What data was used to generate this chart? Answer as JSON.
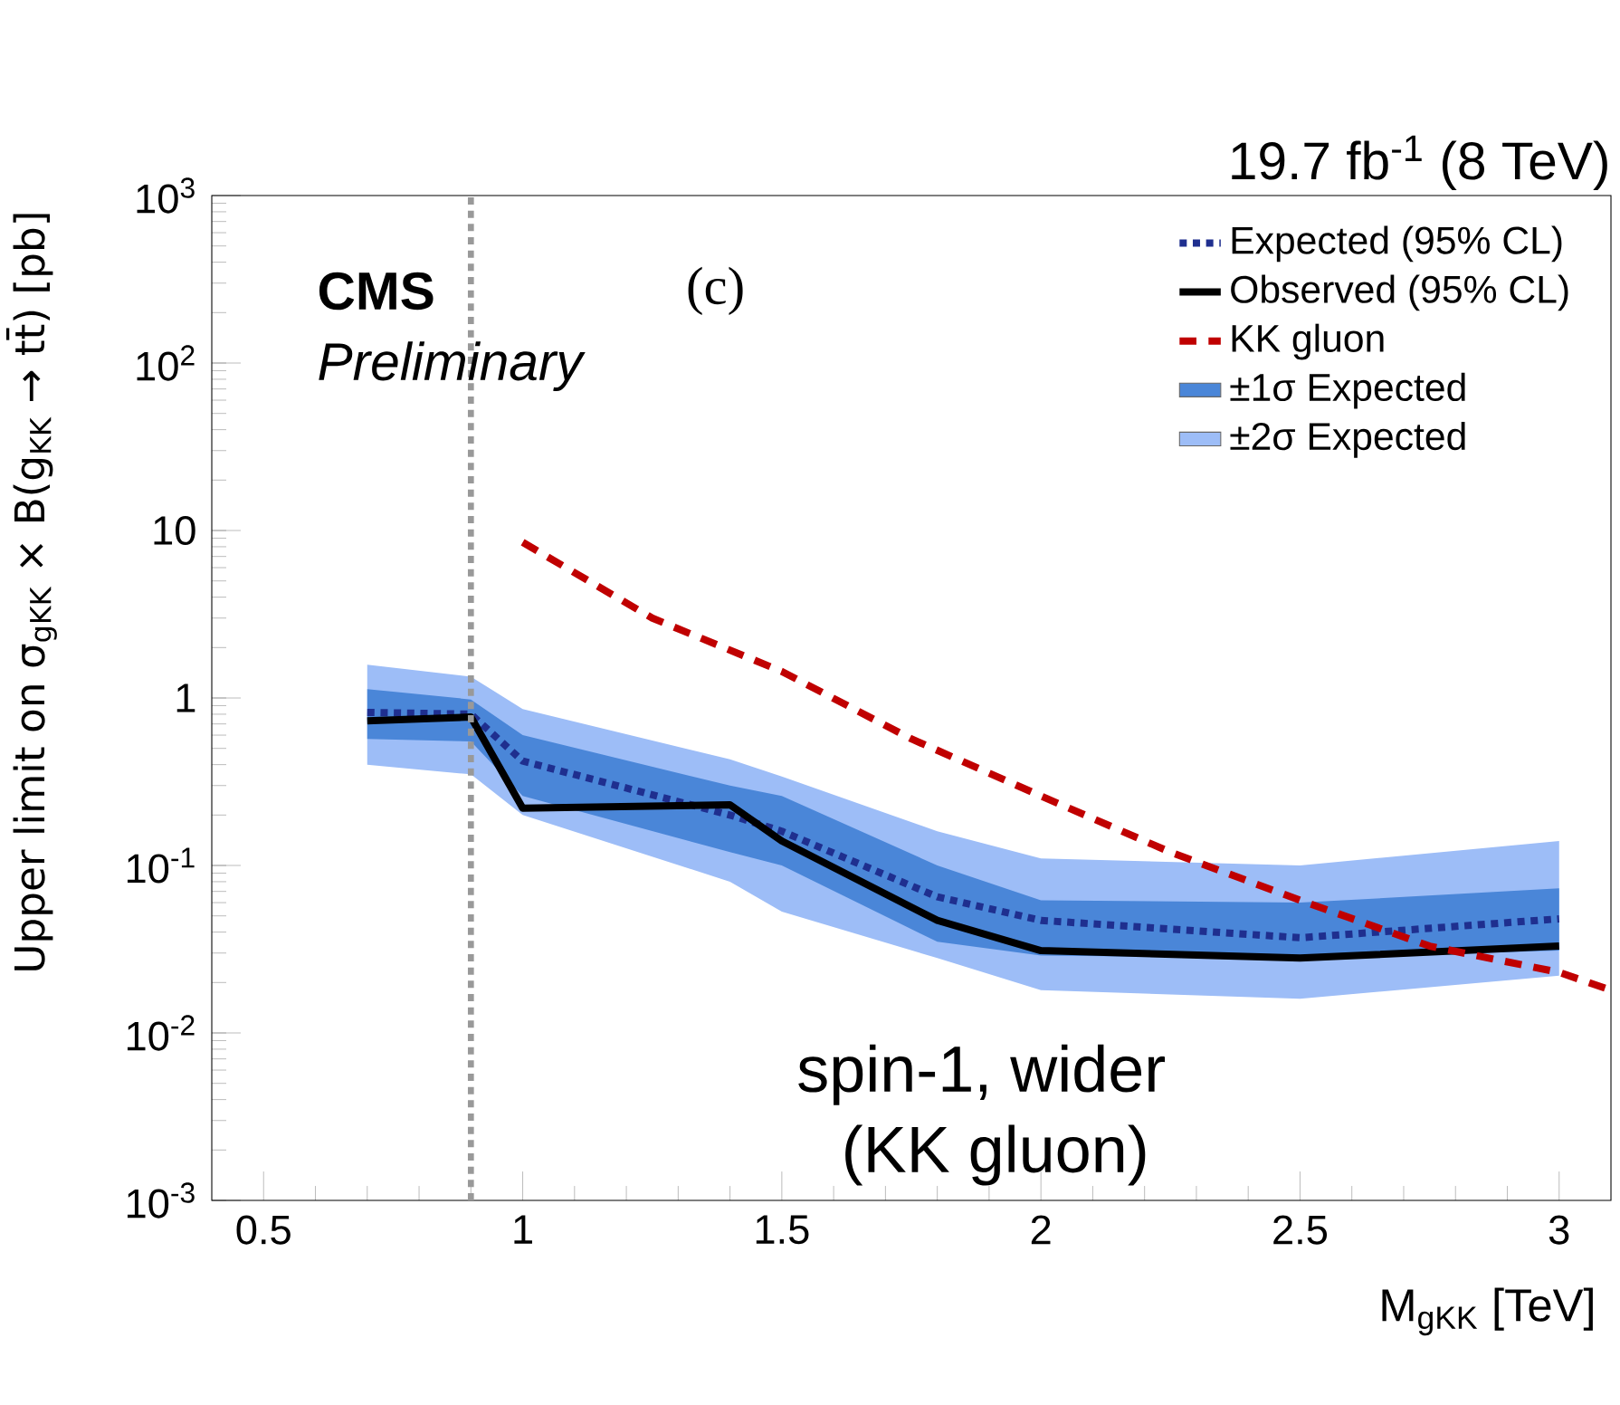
{
  "chart_data": {
    "type": "line",
    "xlabel": "M$_{gKK}$ [TeV]",
    "ylabel": "Upper limit on σ$_{gKK}$ × B(g$_{KK}$ → tt̄) [pb]",
    "x": [
      0.7,
      0.9,
      1.0,
      1.4,
      1.5,
      1.8,
      2.0,
      2.5,
      3.0
    ],
    "series": [
      {
        "name": "Expected (95% CL)",
        "color": "#1f2f8f",
        "line_style": "dotted",
        "values": [
          0.82,
          0.8,
          0.42,
          0.2,
          0.16,
          0.065,
          0.047,
          0.037,
          0.048
        ]
      },
      {
        "name": "Observed (95% CL)",
        "color": "#000000",
        "line_style": "solid",
        "values": [
          0.73,
          0.77,
          0.22,
          0.23,
          0.14,
          0.047,
          0.031,
          0.028,
          0.033
        ]
      },
      {
        "name": "KK gluon",
        "color": "#c00000",
        "line_style": "dashed",
        "x": [
          1.0,
          1.25,
          1.5,
          1.75,
          2.0,
          2.25,
          2.5,
          2.75,
          3.0,
          3.1
        ],
        "values": [
          8.5,
          3.0,
          1.44,
          0.57,
          0.26,
          0.12,
          0.062,
          0.033,
          0.023,
          0.018
        ]
      },
      {
        "name": "±1σ Expected",
        "color": "#4a86d8",
        "values": [
          null,
          null,
          null,
          null,
          null,
          null,
          null,
          null,
          null
        ],
        "lower": [
          0.57,
          0.55,
          0.26,
          0.12,
          0.1,
          0.035,
          0.029,
          0.028,
          0.031
        ],
        "upper": [
          1.13,
          0.98,
          0.6,
          0.3,
          0.26,
          0.1,
          0.062,
          0.06,
          0.073
        ]
      },
      {
        "name": "±2σ Expected",
        "color": "#9dbdf7",
        "values": [
          null,
          null,
          null,
          null,
          null,
          null,
          null,
          null,
          null
        ],
        "lower": [
          0.4,
          0.35,
          0.2,
          0.08,
          0.053,
          0.028,
          0.018,
          0.016,
          0.022
        ],
        "upper": [
          1.58,
          1.34,
          0.86,
          0.43,
          0.34,
          0.16,
          0.11,
          0.1,
          0.14
        ]
      }
    ],
    "log": "y",
    "xlim": [
      0.4,
      3.1
    ],
    "ylim": [
      0.001,
      1000
    ],
    "xticks": [
      0.5,
      1,
      1.5,
      2,
      2.5,
      3
    ],
    "yticks": [
      {
        "value": 0.001,
        "label": "10$^{-3}$"
      },
      {
        "value": 0.01,
        "label": "10$^{-2}$"
      },
      {
        "value": 0.1,
        "label": "10$^{-1}$"
      },
      1,
      10,
      {
        "value": 100,
        "label": "10$^{2}$"
      },
      {
        "value": 1000,
        "label": "10$^{3}$"
      }
    ],
    "ref_lines": [
      {
        "axis": "x",
        "value": 0.9,
        "color": "#999999",
        "line_style": "dotted"
      }
    ],
    "legend": "top right",
    "grid": false,
    "annotations": [
      "19.7 fb$^{-1}$ (8 TeV)",
      "CMS",
      "Preliminary",
      "(c)",
      "spin-1, wider",
      "(KK gluon)"
    ]
  }
}
